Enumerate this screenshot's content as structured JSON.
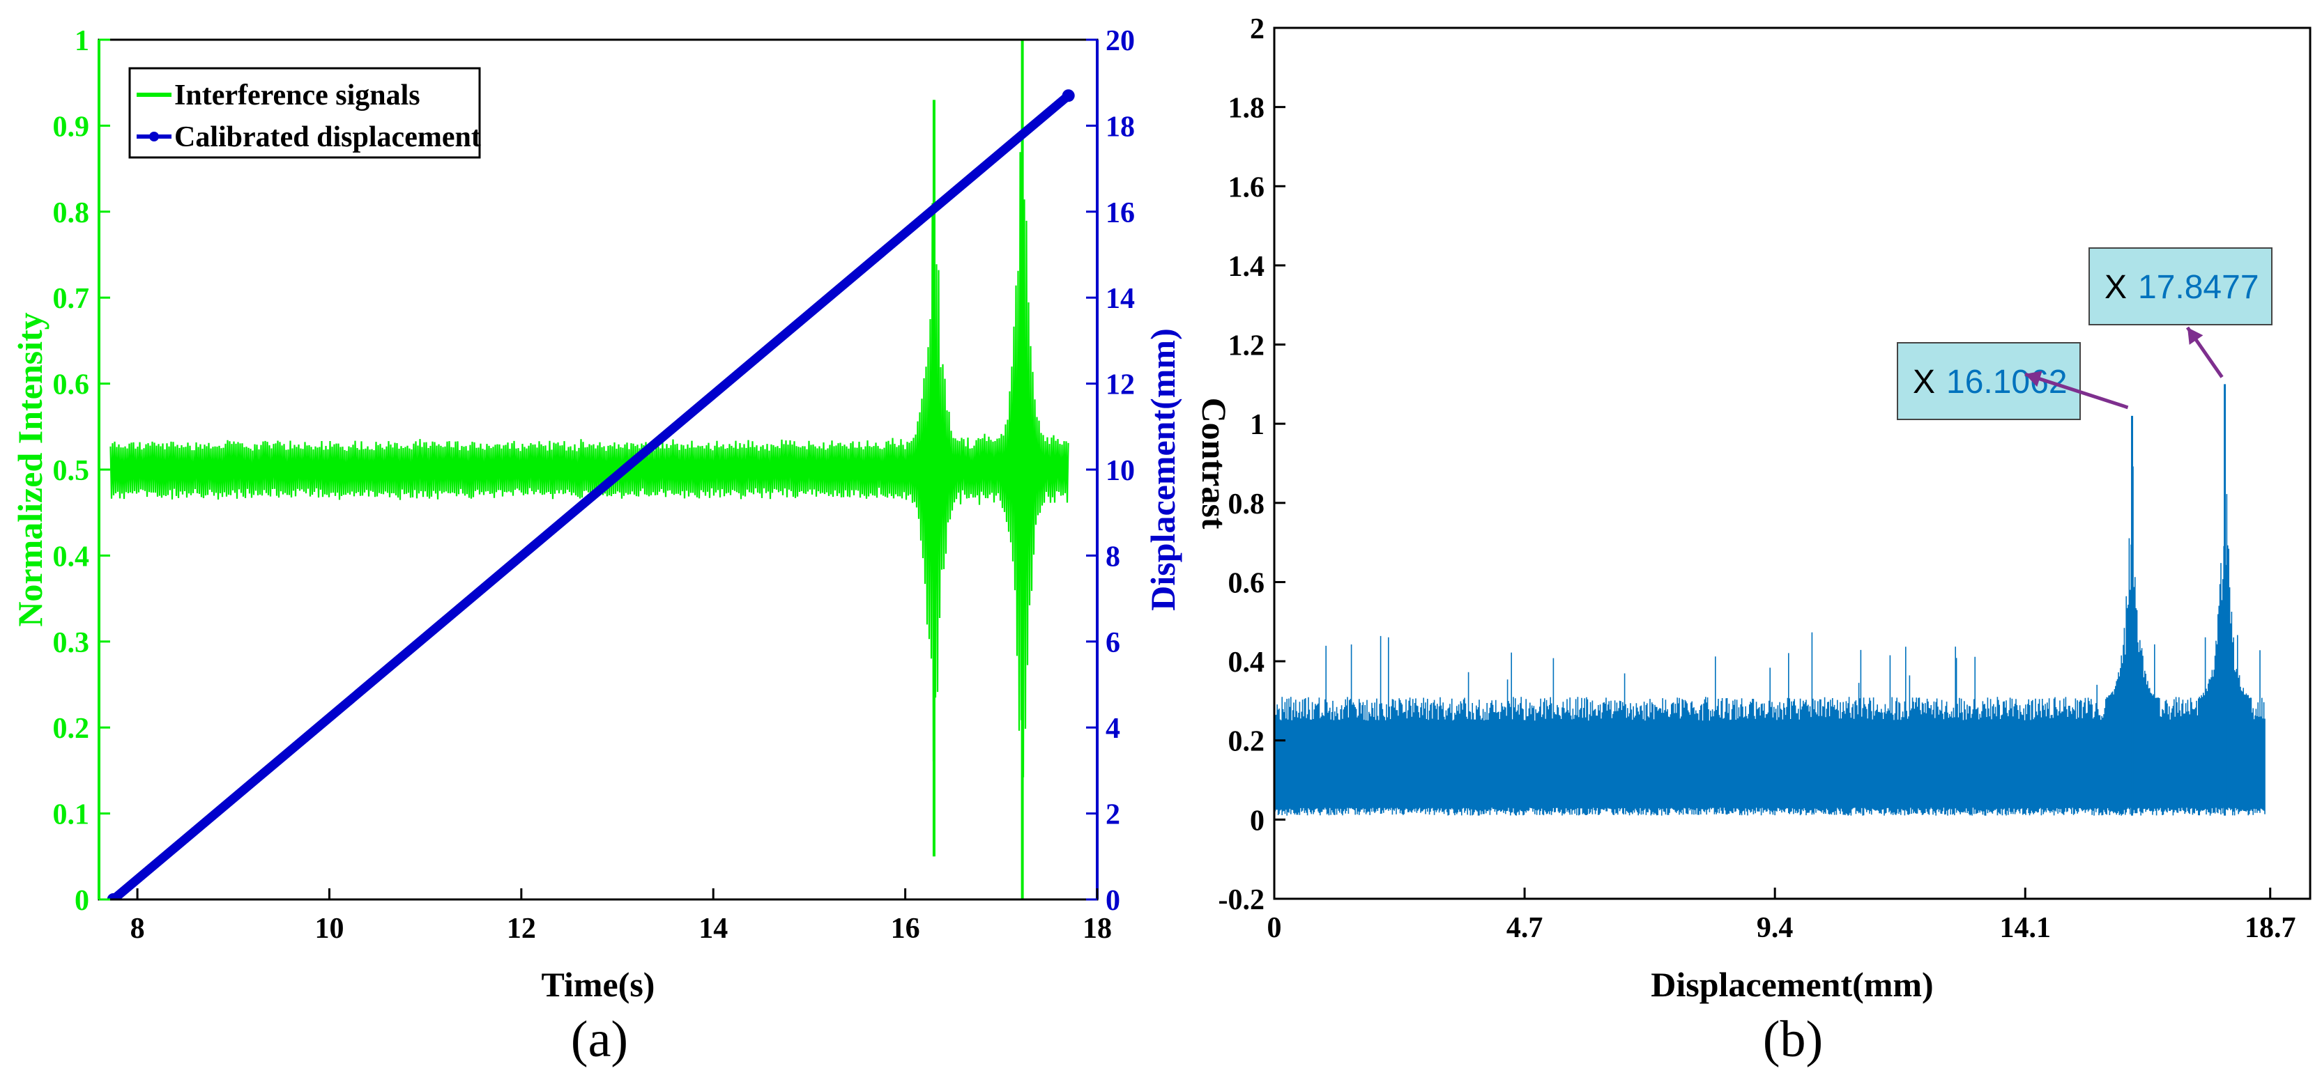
{
  "chart_data": [
    {
      "panel_label": "(a)",
      "type": "line",
      "xlabel": "Time(s)",
      "ylabel_left": "Normalized Intensity",
      "ylabel_right": "Displacement(mm)",
      "xlim": [
        7.6,
        18
      ],
      "ylim_left": [
        0,
        1
      ],
      "ylim_right": [
        0,
        20
      ],
      "x_ticks": [
        8,
        10,
        12,
        14,
        16,
        18
      ],
      "y_left_ticks": [
        0,
        0.1,
        0.2,
        0.3,
        0.4,
        0.5,
        0.6,
        0.7,
        0.8,
        0.9,
        1
      ],
      "y_right_ticks": [
        0,
        2,
        4,
        6,
        8,
        10,
        12,
        14,
        16,
        18,
        20
      ],
      "legend": {
        "placement": "top-left"
      },
      "colors": {
        "left_axis": "#00ee00",
        "right_axis": "#0000cc"
      },
      "series": [
        {
          "name": "Interference signals",
          "axis": "left",
          "color": "#00ee00",
          "baseline": 0.5,
          "band": [
            0.45,
            0.51
          ],
          "x_range": [
            7.72,
            17.7
          ],
          "bursts": [
            {
              "x": 16.3,
              "max": 0.93,
              "min": 0.05
            },
            {
              "x": 17.22,
              "max": 1.0,
              "min": 0.0
            }
          ]
        },
        {
          "name": "Calibrated displacement",
          "axis": "right",
          "color": "#0000cc",
          "x": [
            7.75,
            17.7
          ],
          "y": [
            0,
            18.7
          ]
        }
      ]
    },
    {
      "panel_label": "(b)",
      "type": "line",
      "xlabel": "Displacement(mm)",
      "ylabel": "Contrast",
      "xlim": [
        0,
        19.45
      ],
      "ylim": [
        -0.2,
        2
      ],
      "x_ticks": [
        0,
        4.7,
        9.4,
        14.1,
        18.7
      ],
      "x_tick_labels": [
        "0",
        "4.7",
        "9.4",
        "14.1",
        "18.7"
      ],
      "y_ticks": [
        -0.2,
        0,
        0.2,
        0.4,
        0.6,
        0.8,
        1,
        1.2,
        1.4,
        1.6,
        1.8,
        2
      ],
      "y_tick_labels": [
        "-0.2",
        "0",
        "0.2",
        "0.4",
        "0.6",
        "0.8",
        "1",
        "1.2",
        "1.4",
        "1.6",
        "1.8",
        "2"
      ],
      "series": [
        {
          "color": "#0072bd",
          "x_range": [
            0,
            18.6
          ],
          "band": [
            0.01,
            0.31
          ],
          "peaks": [
            {
              "x": 16.1062,
              "y": 1.02
            },
            {
              "x": 17.8477,
              "y": 1.1
            }
          ]
        }
      ],
      "annotations": [
        {
          "prefix": "X",
          "value": "16.1062",
          "x": 16.1062,
          "y": 1.02
        },
        {
          "prefix": "X",
          "value": "17.8477",
          "x": 17.8477,
          "y": 1.1
        }
      ],
      "colors": {
        "trace": "#0072bd",
        "tip_fill": "#aee3e9",
        "arrow": "#7e2f8e"
      }
    }
  ]
}
